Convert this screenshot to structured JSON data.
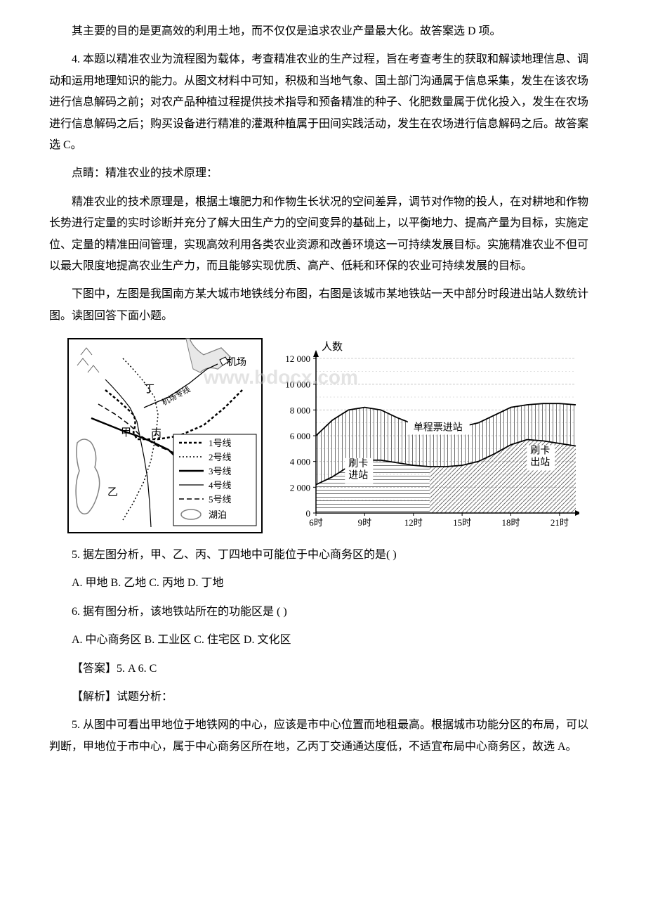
{
  "paragraphs": {
    "p1": "其主要的目的是更高效的利用土地，而不仅仅是追求农业产量最大化。故答案选 D 项。",
    "p2": "4. 本题以精准农业为流程图为载体，考查精准农业的生产过程，旨在考查考生的获取和解读地理信息、调动和运用地理知识的能力。从图文材料中可知，积极和当地气象、国土部门沟通属于信息采集，发生在该农场进行信息解码之前；对农产品种植过程提供技术指导和预备精准的种子、化肥数量属于优化投入，发生在农场进行信息解码之后；购买设备进行精准的灌溉种植属于田间实践活动，发生在农场进行信息解码之后。故答案选 C。",
    "p3": "点睛：精准农业的技术原理：",
    "p4": "精准农业的技术原理是，根据土壤肥力和作物生长状况的空间差异，调节对作物的投人，在对耕地和作物长势进行定量的实时诊断并充分了解大田生产力的空间变异的基础上，以平衡地力、提高产量为目标，实施定位、定量的精准田间管理，实现高效利用各类农业资源和改善环境这一可持续发展目标。实施精准农业不但可以最大限度地提高农业生产力，而且能够实现优质、高产、低耗和环保的农业可持续发展的目标。",
    "p5": "下图中，左图是我国南方某大城市地铁线分布图，右图是该城市某地铁站一天中部分时段进出站人数统计图。读图回答下面小题。",
    "p6": "5. 据左图分析，甲、乙、丙、丁四地中可能位于中心商务区的是( )",
    "p7": "A. 甲地 B. 乙地 C. 丙地 D. 丁地",
    "p8": "6. 据有图分析，该地铁站所在的功能区是 ( )",
    "p9": "A. 中心商务区 B. 工业区 C. 住宅区 D. 文化区",
    "p10": "【答案】5. A 6. C",
    "p11": "【解析】试题分析：",
    "p12": "5. 从图中可看出甲地位于地铁网的中心，应该是市中心位置而地租最高。根据城市功能分区的布局，可以判断，甲地位于市中心，属于中心商务区所在地，乙丙丁交通通达度低，不适宜布局中心商务区，故选 A。"
  },
  "map": {
    "labels": {
      "jia": "甲",
      "yi": "乙",
      "bing": "丙",
      "ding": "丁",
      "airport": "机场",
      "airport_line": "机场专线"
    },
    "legend": {
      "line1": "1号线",
      "line2": "2号线",
      "line3": "3号线",
      "line4": "4号线",
      "line5": "5号线",
      "lake": "湖泊"
    },
    "colors": {
      "border": "#000000",
      "water": "#d0d0d0",
      "mountain": "#808080",
      "line": "#000000"
    }
  },
  "chart": {
    "y_title": "人数",
    "y_values": [
      0,
      2000,
      4000,
      6000,
      8000,
      10000,
      12000
    ],
    "y_labels": [
      "0",
      "2 000",
      "4 000",
      "6 000",
      "8 000",
      "10 000",
      "12 000"
    ],
    "x_labels": [
      "6时",
      "9时",
      "12时",
      "15时",
      "18时",
      "21时"
    ],
    "x_values": [
      6,
      9,
      12,
      15,
      18,
      21
    ],
    "x_min": 6,
    "x_max": 22,
    "y_min": 0,
    "y_max": 12000,
    "series_in": {
      "label": "单程票进站",
      "points": [
        [
          6,
          6000
        ],
        [
          7,
          7200
        ],
        [
          8,
          8000
        ],
        [
          9,
          8200
        ],
        [
          10,
          8000
        ],
        [
          11,
          7400
        ],
        [
          12,
          6900
        ],
        [
          13,
          6700
        ],
        [
          14,
          6600
        ],
        [
          15,
          6700
        ],
        [
          16,
          7000
        ],
        [
          17,
          7600
        ],
        [
          18,
          8200
        ],
        [
          19,
          8400
        ],
        [
          20,
          8500
        ],
        [
          21,
          8500
        ],
        [
          22,
          8400
        ]
      ]
    },
    "series_out": {
      "label1": "刷卡",
      "label2": "出站",
      "label1_combined": "刷卡进站",
      "points": [
        [
          6,
          2200
        ],
        [
          7,
          2800
        ],
        [
          8,
          3600
        ],
        [
          9,
          4100
        ],
        [
          10,
          4100
        ],
        [
          11,
          3900
        ],
        [
          12,
          3700
        ],
        [
          13,
          3600
        ],
        [
          14,
          3600
        ],
        [
          15,
          3700
        ],
        [
          16,
          4000
        ],
        [
          17,
          4600
        ],
        [
          18,
          5300
        ],
        [
          19,
          5700
        ],
        [
          20,
          5600
        ],
        [
          21,
          5400
        ],
        [
          22,
          5200
        ]
      ]
    },
    "label_in_box": "刷卡进站",
    "colors": {
      "axis": "#000000",
      "grid": "#c0c0c0",
      "hatch": "#707070",
      "text": "#000000"
    },
    "fonts": {
      "axis_label_size": 13,
      "title_size": 15
    }
  },
  "watermark": "www.bdocx.com"
}
